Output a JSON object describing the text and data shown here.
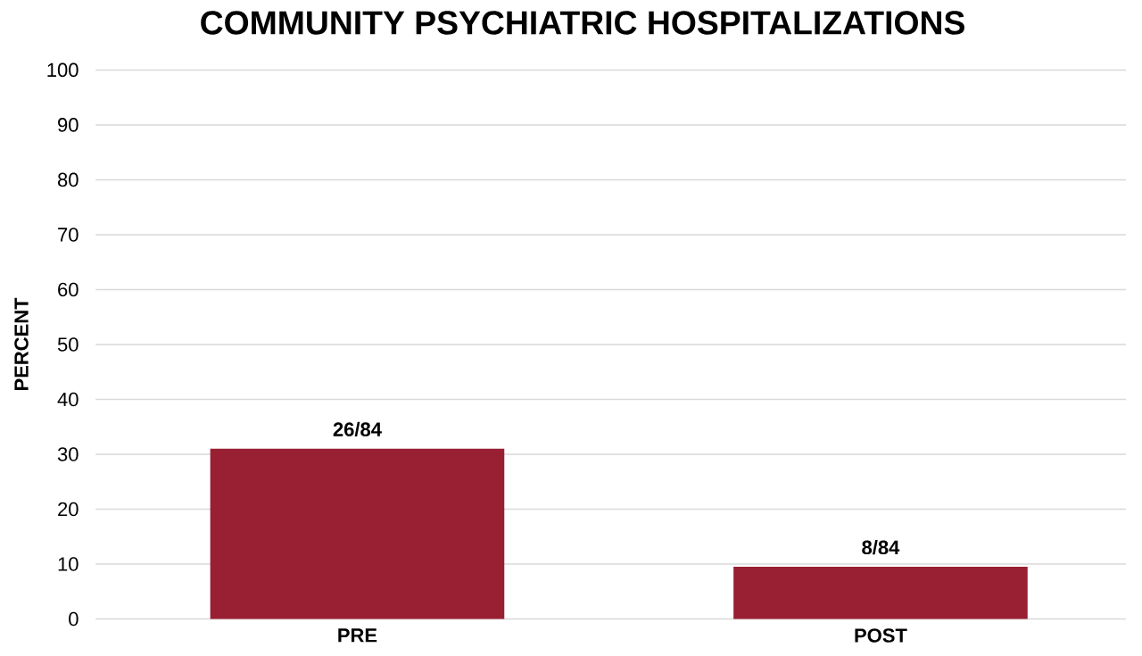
{
  "chart_data": {
    "type": "bar",
    "title": "COMMUNITY PSYCHIATRIC HOSPITALIZATIONS",
    "ylabel": "PERCENT",
    "categories": [
      "PRE",
      "POST"
    ],
    "values": [
      31,
      9.5
    ],
    "value_labels": [
      "26/84",
      "8/84"
    ],
    "color": "#991f33",
    "ylim": [
      0,
      100
    ],
    "yticks": [
      0,
      10,
      20,
      30,
      40,
      50,
      60,
      70,
      80,
      90,
      100
    ],
    "grid": "y"
  }
}
